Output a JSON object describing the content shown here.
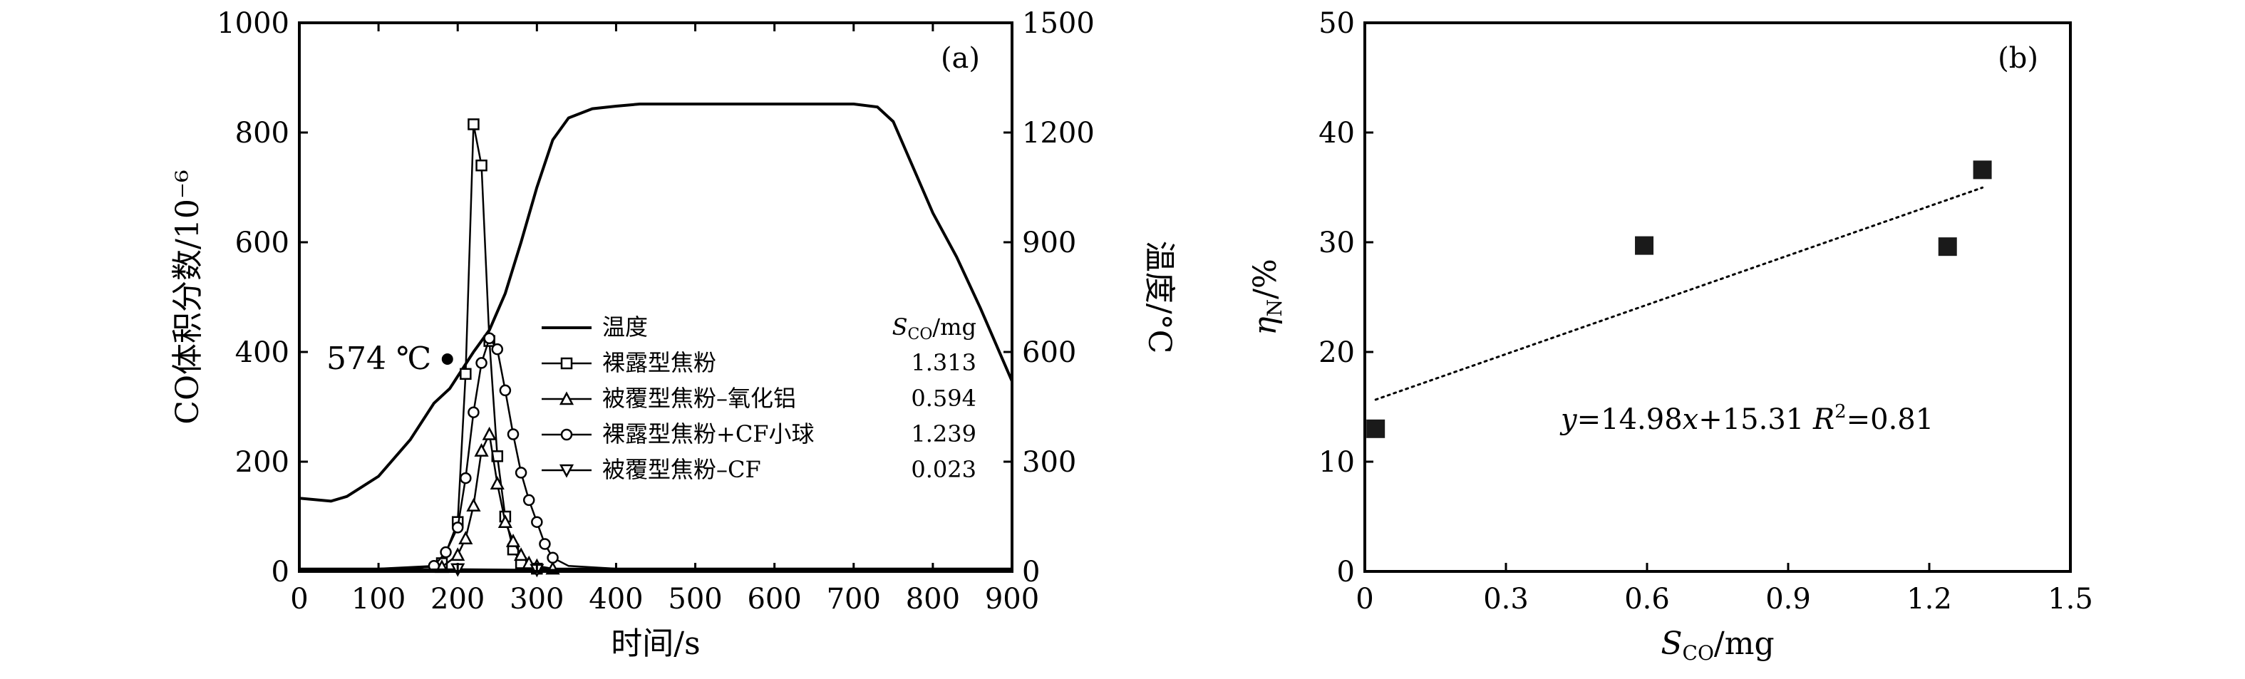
{
  "chart_data": [
    {
      "type": "line",
      "panel_label": "(a)",
      "xlabel": "时间/s",
      "ylabel_left": "CO体积分数/10⁻⁶",
      "ylabel_right": "温度/°C",
      "xlim": [
        0,
        900
      ],
      "ylim_left": [
        0,
        1000
      ],
      "ylim_right": [
        0,
        1500
      ],
      "x_ticks": [
        "0",
        "100",
        "200",
        "300",
        "400",
        "500",
        "600",
        "700",
        "800",
        "900"
      ],
      "y_ticks_left": [
        "0",
        "200",
        "400",
        "600",
        "800",
        "1000"
      ],
      "y_ticks_right": [
        "0",
        "300",
        "600",
        "900",
        "1200",
        "1500"
      ],
      "legend_header": {
        "S": "S",
        "sub": "CO",
        "unit": "/mg"
      },
      "annotation": {
        "text": "574 ℃",
        "x": 187,
        "y": 387
      },
      "series": [
        {
          "name": "温度",
          "axis": "right",
          "marker": "none",
          "s_co": "",
          "x": [
            0,
            40,
            60,
            100,
            140,
            170,
            190,
            220,
            240,
            260,
            280,
            300,
            320,
            340,
            370,
            400,
            430,
            500,
            600,
            700,
            730,
            750,
            780,
            800,
            830,
            860,
            900
          ],
          "y": [
            200,
            192,
            205,
            260,
            360,
            460,
            500,
            600,
            660,
            760,
            900,
            1050,
            1180,
            1240,
            1265,
            1272,
            1278,
            1278,
            1278,
            1278,
            1270,
            1230,
            1080,
            980,
            860,
            720,
            520
          ]
        },
        {
          "name": "裸露型焦粉",
          "axis": "left",
          "marker": "square",
          "s_co": "1.313",
          "x": [
            0,
            50,
            100,
            150,
            180,
            200,
            210,
            220,
            230,
            240,
            250,
            260,
            270,
            280,
            300,
            350,
            400,
            500,
            600,
            700,
            800,
            900
          ],
          "y": [
            5,
            5,
            5,
            5,
            15,
            90,
            360,
            815,
            740,
            420,
            210,
            100,
            40,
            15,
            5,
            5,
            5,
            5,
            5,
            5,
            5,
            5
          ]
        },
        {
          "name": "被覆型焦粉–氧化铝",
          "axis": "left",
          "marker": "triangle-up",
          "s_co": "0.594",
          "x": [
            0,
            100,
            180,
            200,
            210,
            220,
            230,
            240,
            250,
            260,
            270,
            280,
            290,
            300,
            320,
            400,
            500,
            600,
            700,
            800,
            900
          ],
          "y": [
            5,
            5,
            8,
            30,
            60,
            120,
            220,
            250,
            160,
            90,
            55,
            30,
            15,
            10,
            5,
            5,
            5,
            5,
            5,
            5,
            5
          ]
        },
        {
          "name": "裸露型焦粉+CF小球",
          "axis": "left",
          "marker": "circle",
          "s_co": "1.239",
          "x": [
            0,
            100,
            170,
            185,
            200,
            210,
            220,
            230,
            240,
            250,
            260,
            270,
            280,
            290,
            300,
            310,
            320,
            340,
            400,
            500,
            600,
            700,
            800,
            900
          ],
          "y": [
            5,
            5,
            10,
            35,
            80,
            170,
            290,
            380,
            425,
            405,
            330,
            250,
            180,
            130,
            90,
            50,
            25,
            10,
            5,
            5,
            5,
            5,
            5,
            5
          ]
        },
        {
          "name": "被覆型焦粉–CF",
          "axis": "left",
          "marker": "triangle-down",
          "s_co": "0.023",
          "x": [
            0,
            100,
            200,
            300,
            400,
            500,
            600,
            700,
            800,
            900
          ],
          "y": [
            3,
            3,
            4,
            3,
            3,
            3,
            3,
            3,
            3,
            3
          ]
        }
      ]
    },
    {
      "type": "scatter",
      "panel_label": "(b)",
      "xlabel": "S_CO/mg",
      "ylabel": "η_N/%",
      "xlim": [
        0,
        1.5
      ],
      "ylim": [
        0,
        50
      ],
      "x_ticks": [
        "0",
        "0.3",
        "0.6",
        "0.9",
        "1.2",
        "1.5"
      ],
      "y_ticks": [
        "0",
        "10",
        "20",
        "30",
        "40",
        "50"
      ],
      "points": {
        "x": [
          0.023,
          0.594,
          1.239,
          1.313
        ],
        "y": [
          13.0,
          29.7,
          29.6,
          36.6
        ]
      },
      "fit": {
        "slope": 14.98,
        "intercept": 15.31,
        "x_range": [
          0.023,
          1.313
        ]
      },
      "equation": {
        "y": "y",
        "a": "=14.98",
        "x": "x",
        "b": "+15.31 ",
        "r": "R",
        "r2": "2",
        "val": "=0.81"
      }
    }
  ]
}
